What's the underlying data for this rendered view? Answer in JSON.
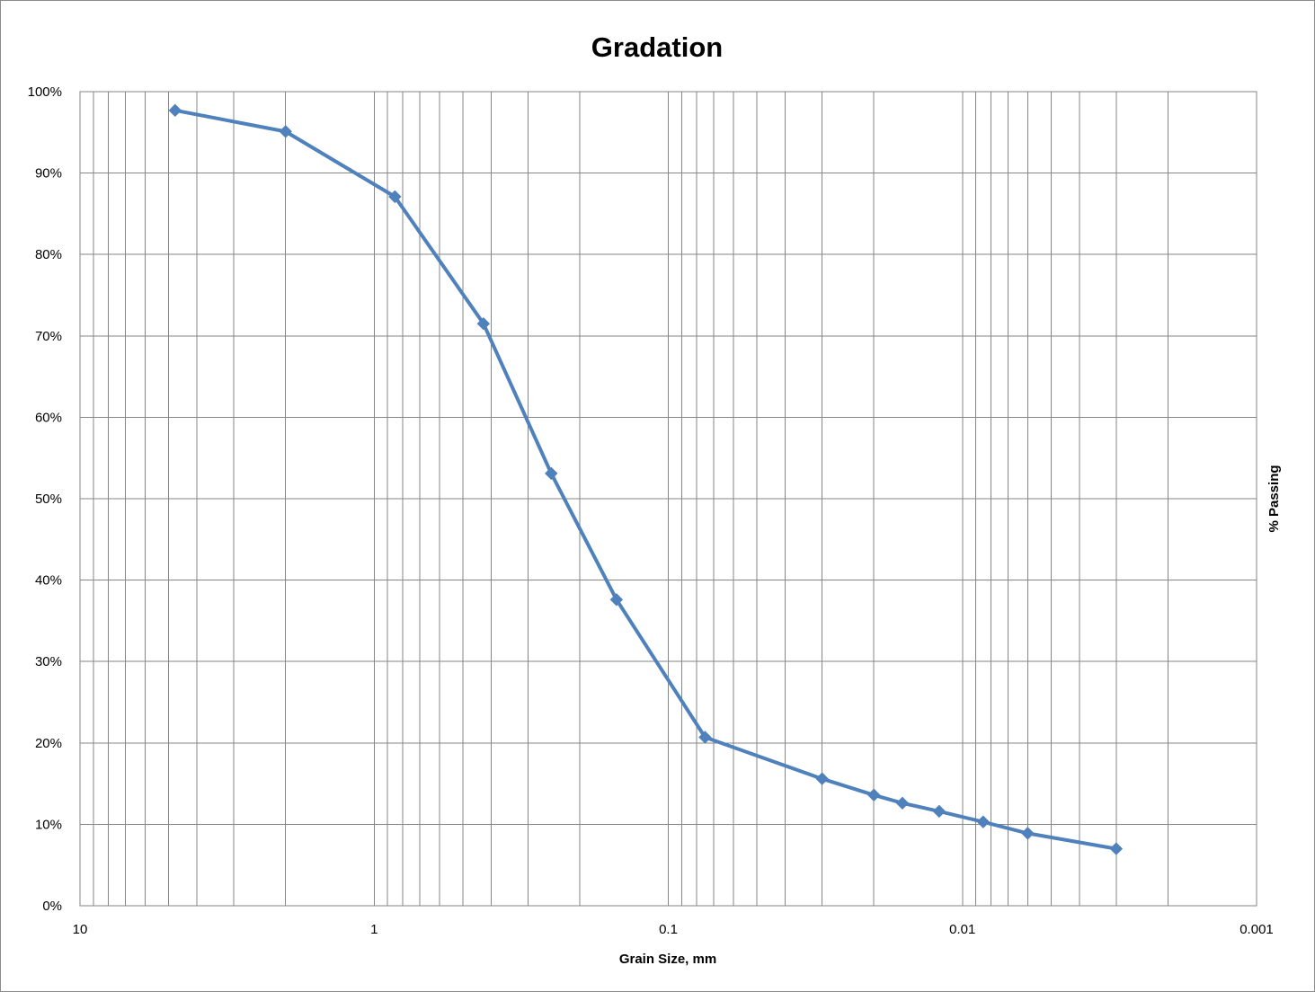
{
  "chart_data": {
    "type": "scatter",
    "title": "Gradation",
    "xlabel": "Grain Size, mm",
    "ylabel": "% Passing",
    "x_scale": "log",
    "x_reversed": true,
    "xlim": [
      10,
      0.001
    ],
    "ylim": [
      0,
      100
    ],
    "x_ticks": [
      {
        "value": 10,
        "label": "10"
      },
      {
        "value": 1,
        "label": "1"
      },
      {
        "value": 0.1,
        "label": "0.1"
      },
      {
        "value": 0.01,
        "label": "0.01"
      },
      {
        "value": 0.001,
        "label": "0.001"
      }
    ],
    "y_ticks": [
      {
        "value": 0,
        "label": "0%"
      },
      {
        "value": 10,
        "label": "10%"
      },
      {
        "value": 20,
        "label": "20%"
      },
      {
        "value": 30,
        "label": "30%"
      },
      {
        "value": 40,
        "label": "40%"
      },
      {
        "value": 50,
        "label": "50%"
      },
      {
        "value": 60,
        "label": "60%"
      },
      {
        "value": 70,
        "label": "70%"
      },
      {
        "value": 80,
        "label": "80%"
      },
      {
        "value": 90,
        "label": "90%"
      },
      {
        "value": 100,
        "label": "100%"
      }
    ],
    "grid": true,
    "legend": "none",
    "series": [
      {
        "color": "#4f81bd",
        "marker": "diamond",
        "line": true,
        "x": [
          4.75,
          2.0,
          0.85,
          0.425,
          0.25,
          0.15,
          0.075,
          0.03,
          0.02,
          0.016,
          0.012,
          0.0085,
          0.006,
          0.003
        ],
        "y": [
          97.7,
          95.1,
          87.1,
          71.5,
          53.1,
          37.6,
          20.7,
          15.6,
          13.6,
          12.6,
          11.6,
          10.3,
          8.9,
          7.0
        ]
      }
    ]
  }
}
